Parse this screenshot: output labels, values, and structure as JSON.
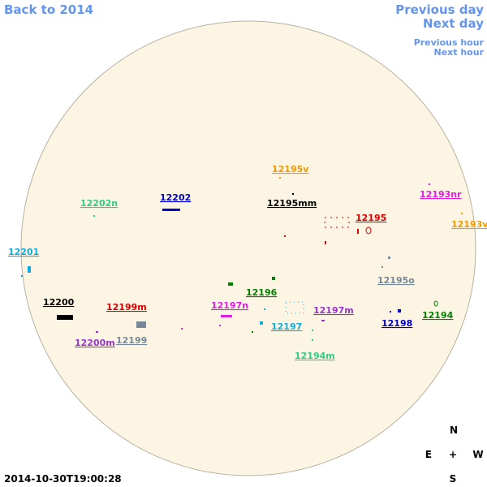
{
  "nav": {
    "back": "Back to 2014",
    "previous_day": "Previous day",
    "next_day": "Next day",
    "previous_hour": "Previous hour",
    "next_hour": "Next hour"
  },
  "regions": [
    {
      "label": "12195v",
      "color": "#f09a00"
    },
    {
      "label": "12202n",
      "color": "#2ecc85"
    },
    {
      "label": "12202",
      "color": "#0000cc"
    },
    {
      "label": "12195mm",
      "color": "#000000"
    },
    {
      "label": "12193nr",
      "color": "#e01ee0"
    },
    {
      "label": "12195",
      "color": "#dd0000"
    },
    {
      "label": "12193v",
      "color": "#f09a00"
    },
    {
      "label": "12201",
      "color": "#11aadd"
    },
    {
      "label": "12195o",
      "color": "#778899"
    },
    {
      "label": "12196",
      "color": "#008000"
    },
    {
      "label": "12200",
      "color": "#000000"
    },
    {
      "label": "12199m",
      "color": "#dd0000"
    },
    {
      "label": "12197n",
      "color": "#e01ee0"
    },
    {
      "label": "12197m",
      "color": "#9933cc"
    },
    {
      "label": "12194",
      "color": "#008000"
    },
    {
      "label": "12198",
      "color": "#0000cc"
    },
    {
      "label": "12197",
      "color": "#11aadd"
    },
    {
      "label": "12200m",
      "color": "#9933cc"
    },
    {
      "label": "12199",
      "color": "#778899"
    },
    {
      "label": "12194m",
      "color": "#2ecc85"
    }
  ],
  "timestamp": "2014-10-30T19:00:28",
  "compass": {
    "north": "N",
    "east": "E",
    "center": "+",
    "west": "W",
    "south": "S"
  }
}
